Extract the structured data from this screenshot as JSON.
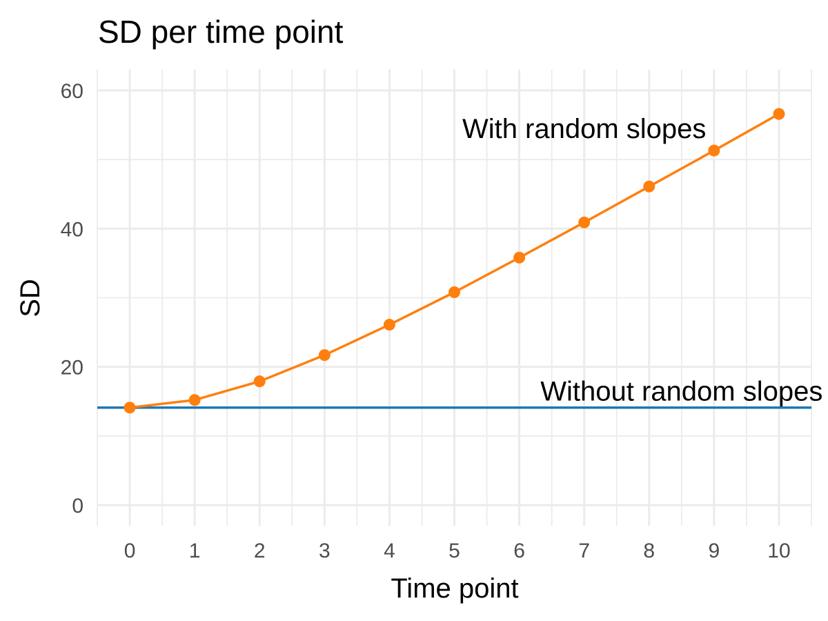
{
  "chart_data": {
    "type": "line",
    "title": "SD per time point",
    "xlabel": "Time point",
    "ylabel": "SD",
    "x": [
      0,
      1,
      2,
      3,
      4,
      5,
      6,
      7,
      8,
      9,
      10
    ],
    "xlim": [
      -0.5,
      10.5
    ],
    "ylim": [
      -3,
      63
    ],
    "x_ticks": [
      0,
      1,
      2,
      3,
      4,
      5,
      6,
      7,
      8,
      9,
      10
    ],
    "y_ticks": [
      0,
      20,
      40,
      60
    ],
    "grid": true,
    "series": [
      {
        "name": "With random slopes",
        "color": "#ff7f0e",
        "markers": true,
        "values": [
          14.1,
          15.2,
          17.9,
          21.7,
          26.1,
          30.8,
          35.8,
          40.9,
          46.1,
          51.3,
          56.6
        ]
      },
      {
        "name": "Without random slopes",
        "color": "#1f77b4",
        "markers": false,
        "horizontal_line": true,
        "values": [
          14.1,
          14.1,
          14.1,
          14.1,
          14.1,
          14.1,
          14.1,
          14.1,
          14.1,
          14.1,
          14.1
        ]
      }
    ],
    "annotations": [
      {
        "text": "With random slopes",
        "x": 7.0,
        "y": 54.5
      },
      {
        "text": "Without random slopes",
        "x": 8.5,
        "y": 16.5
      }
    ]
  }
}
